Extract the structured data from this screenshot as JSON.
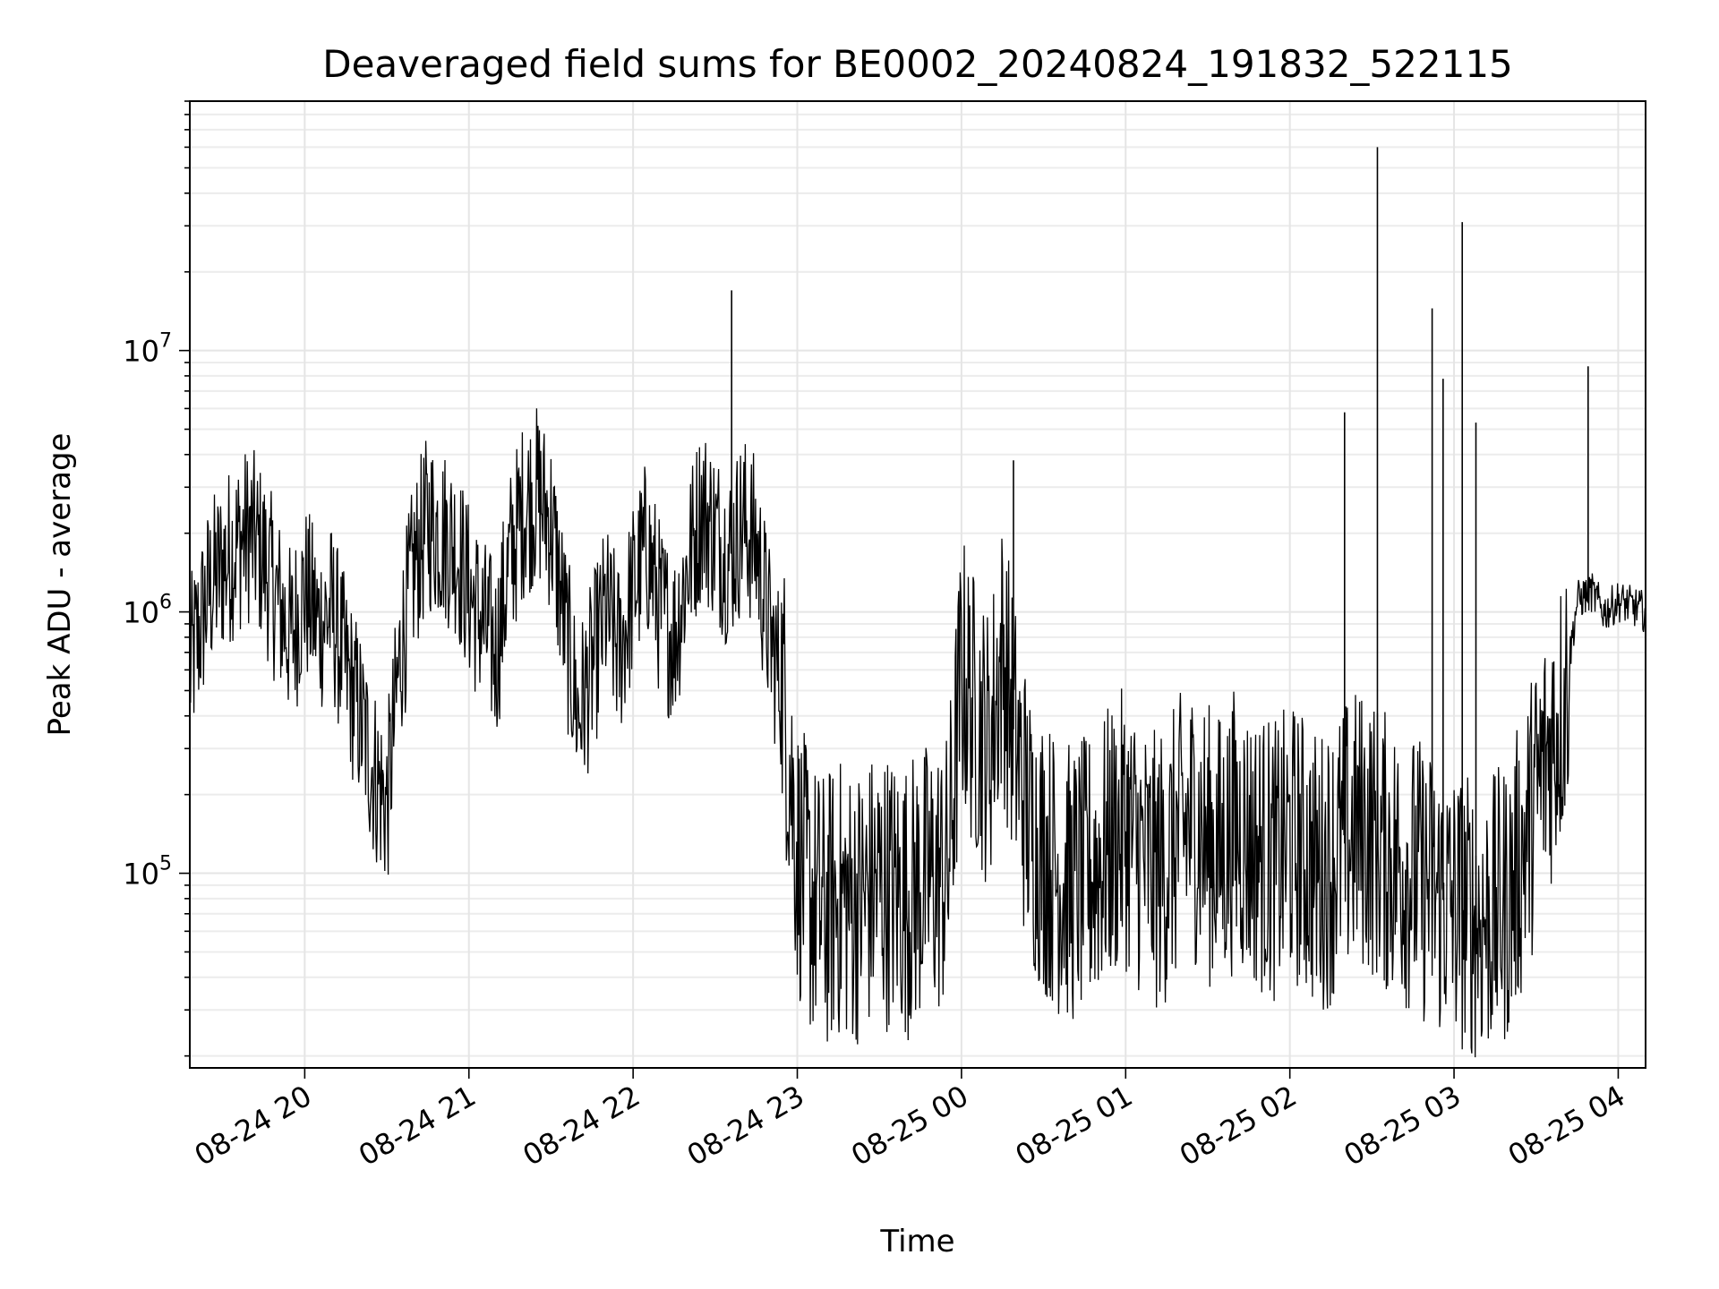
{
  "chart_data": {
    "type": "line",
    "title": "Deaveraged field sums for BE0002_20240824_191832_522115",
    "xlabel": "Time",
    "ylabel": "Peak ADU - average",
    "yscale": "log",
    "xlim": [
      "2024-08-24 19:18",
      "2024-08-25 04:10"
    ],
    "ylim": [
      18000,
      90000000
    ],
    "grid": true,
    "x_ticks": [
      "08-24 20",
      "08-24 21",
      "08-24 22",
      "08-24 23",
      "08-25 00",
      "08-25 01",
      "08-25 02",
      "08-25 03",
      "08-25 04"
    ],
    "y_ticks": [
      {
        "base": "10",
        "exp": "5",
        "value": 100000
      },
      {
        "base": "10",
        "exp": "6",
        "value": 1000000
      },
      {
        "base": "10",
        "exp": "7",
        "value": 10000000
      }
    ],
    "line_color": "#000000",
    "series": [
      {
        "x": [
          "2024-08-24 19:18",
          "2024-08-24 19:25",
          "2024-08-24 19:30",
          "2024-08-24 19:35",
          "2024-08-24 19:40",
          "2024-08-24 19:45",
          "2024-08-24 19:50",
          "2024-08-24 19:55",
          "2024-08-24 20:00",
          "2024-08-24 20:05",
          "2024-08-24 20:10",
          "2024-08-24 20:15",
          "2024-08-24 20:20",
          "2024-08-24 20:25",
          "2024-08-24 20:30",
          "2024-08-24 20:35",
          "2024-08-24 20:40",
          "2024-08-24 20:45",
          "2024-08-24 20:50",
          "2024-08-24 20:55",
          "2024-08-24 21:00",
          "2024-08-24 21:05",
          "2024-08-24 21:10",
          "2024-08-24 21:15",
          "2024-08-24 21:20",
          "2024-08-24 21:25",
          "2024-08-24 21:30",
          "2024-08-24 21:35",
          "2024-08-24 21:40",
          "2024-08-24 21:45",
          "2024-08-24 21:50",
          "2024-08-24 21:55",
          "2024-08-24 22:00",
          "2024-08-24 22:05",
          "2024-08-24 22:10",
          "2024-08-24 22:15",
          "2024-08-24 22:20",
          "2024-08-24 22:25",
          "2024-08-24 22:30",
          "2024-08-24 22:35",
          "2024-08-24 22:40",
          "2024-08-24 22:45",
          "2024-08-24 22:50",
          "2024-08-24 22:55",
          "2024-08-24 23:00",
          "2024-08-24 23:05",
          "2024-08-24 23:10",
          "2024-08-24 23:15",
          "2024-08-24 23:20",
          "2024-08-24 23:25",
          "2024-08-24 23:30",
          "2024-08-24 23:35",
          "2024-08-24 23:40",
          "2024-08-24 23:45",
          "2024-08-24 23:50",
          "2024-08-24 23:55",
          "2024-08-25 00:00",
          "2024-08-25 00:05",
          "2024-08-25 00:10",
          "2024-08-25 00:15",
          "2024-08-25 00:20",
          "2024-08-25 00:25",
          "2024-08-25 00:30",
          "2024-08-25 00:35",
          "2024-08-25 00:40",
          "2024-08-25 00:45",
          "2024-08-25 00:50",
          "2024-08-25 00:55",
          "2024-08-25 01:00",
          "2024-08-25 01:05",
          "2024-08-25 01:10",
          "2024-08-25 01:15",
          "2024-08-25 01:20",
          "2024-08-25 01:25",
          "2024-08-25 01:30",
          "2024-08-25 01:35",
          "2024-08-25 01:40",
          "2024-08-25 01:45",
          "2024-08-25 01:50",
          "2024-08-25 01:55",
          "2024-08-25 02:00",
          "2024-08-25 02:05",
          "2024-08-25 02:10",
          "2024-08-25 02:15",
          "2024-08-25 02:20",
          "2024-08-25 02:25",
          "2024-08-25 02:30",
          "2024-08-25 02:35",
          "2024-08-25 02:40",
          "2024-08-25 02:45",
          "2024-08-25 02:50",
          "2024-08-25 02:55",
          "2024-08-25 03:00",
          "2024-08-25 03:05",
          "2024-08-25 03:10",
          "2024-08-25 03:15",
          "2024-08-25 03:20",
          "2024-08-25 03:25",
          "2024-08-25 03:30",
          "2024-08-25 03:35",
          "2024-08-25 03:40",
          "2024-08-25 03:45",
          "2024-08-25 03:50",
          "2024-08-25 03:55",
          "2024-08-25 04:00",
          "2024-08-25 04:05",
          "2024-08-25 04:10"
        ],
        "y": [
          600000,
          1200000,
          1500000,
          1800000,
          2000000,
          1600000,
          1100000,
          800000,
          1200000,
          900000,
          1000000,
          600000,
          400000,
          250000,
          180000,
          700000,
          1500000,
          2200000,
          2000000,
          1800000,
          1200000,
          900000,
          700000,
          1600000,
          2500000,
          2800000,
          2200000,
          900000,
          400000,
          600000,
          1000000,
          700000,
          1200000,
          1800000,
          1000000,
          800000,
          1500000,
          2500000,
          2000000,
          1600000,
          2200000,
          1800000,
          800000,
          500000,
          120000,
          80000,
          70000,
          80000,
          75000,
          80000,
          90000,
          85000,
          80000,
          90000,
          95000,
          100000,
          600000,
          400000,
          300000,
          700000,
          300000,
          150000,
          120000,
          100000,
          90000,
          95000,
          110000,
          130000,
          150000,
          120000,
          100000,
          110000,
          140000,
          160000,
          130000,
          120000,
          150000,
          130000,
          120000,
          110000,
          130000,
          120000,
          100000,
          110000,
          130000,
          150000,
          140000,
          120000,
          110000,
          100000,
          90000,
          80000,
          75000,
          70000,
          65000,
          70000,
          80000,
          120000,
          200000,
          300000,
          450000,
          1100000,
          1200000,
          1000000,
          1100000,
          1050000,
          1000000
        ]
      }
    ],
    "spikes": [
      {
        "x": "2024-08-24 22:36",
        "y": 17000000
      },
      {
        "x": "2024-08-25 00:19",
        "y": 3800000
      },
      {
        "x": "2024-08-25 02:20",
        "y": 5800000
      },
      {
        "x": "2024-08-25 02:32",
        "y": 60000000
      },
      {
        "x": "2024-08-25 02:52",
        "y": 14500000
      },
      {
        "x": "2024-08-25 02:56",
        "y": 7800000
      },
      {
        "x": "2024-08-25 03:03",
        "y": 31000000
      },
      {
        "x": "2024-08-25 03:08",
        "y": 5300000
      },
      {
        "x": "2024-08-25 03:49",
        "y": 8700000
      }
    ]
  }
}
